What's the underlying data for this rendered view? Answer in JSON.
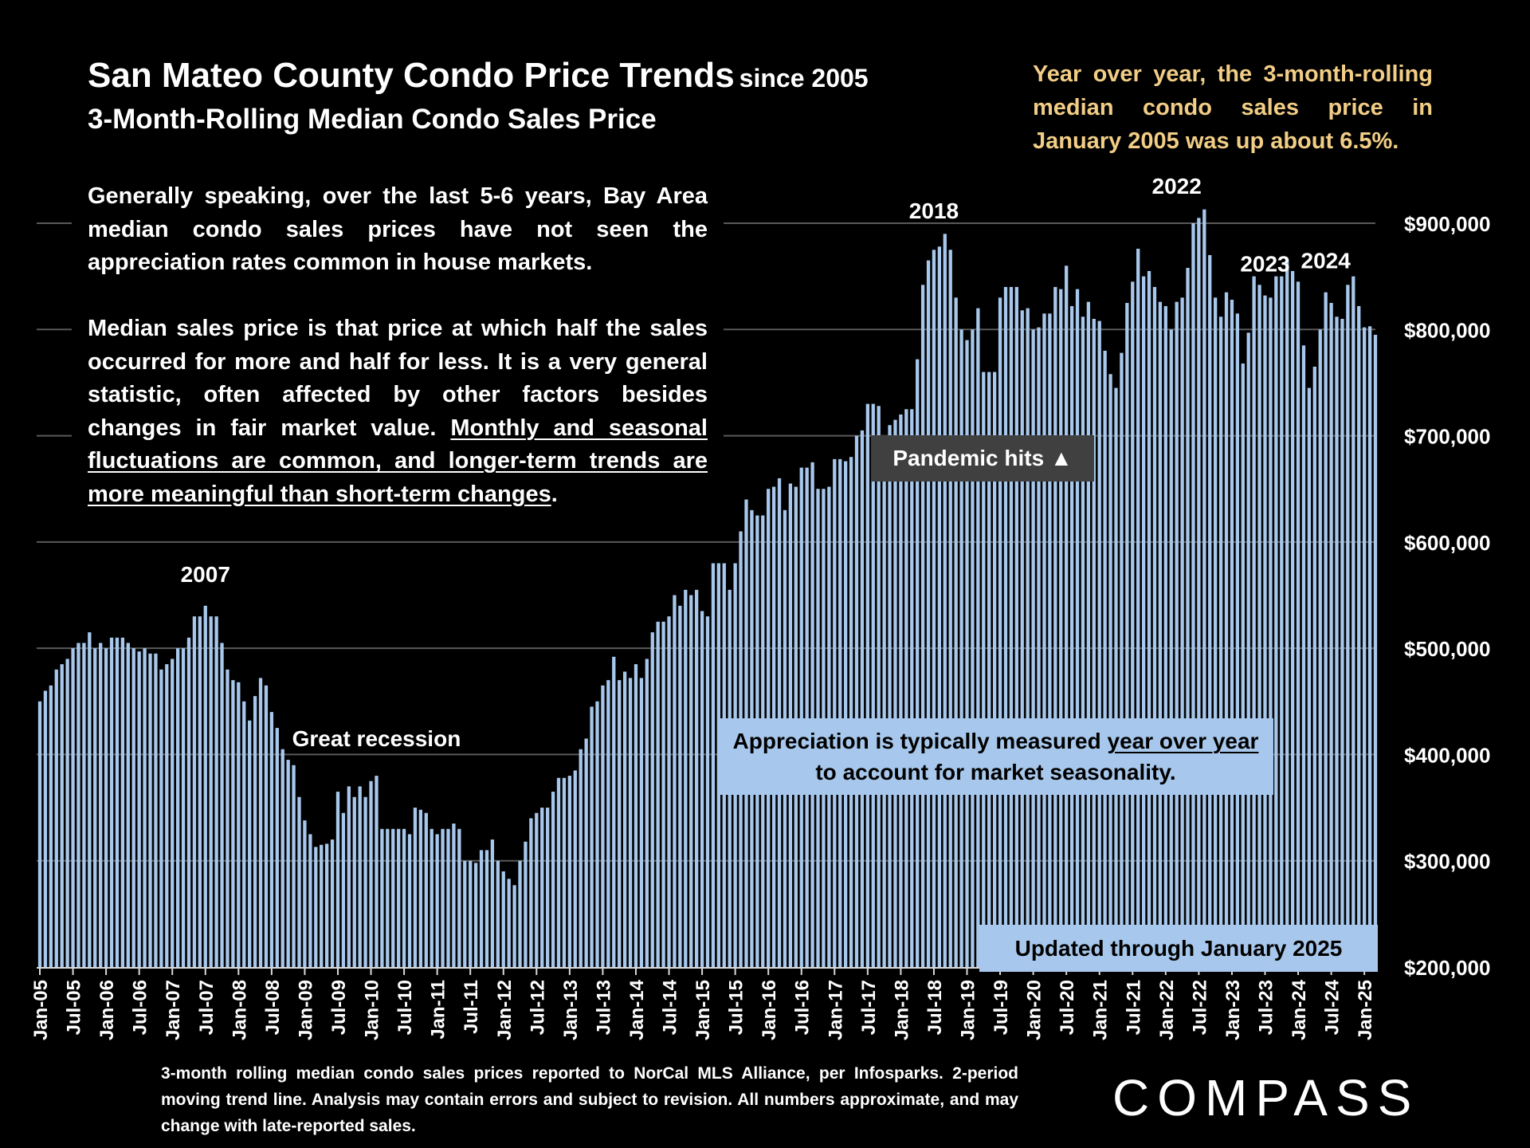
{
  "header": {
    "title": "San Mateo County Condo Price Trends",
    "title_since": "since 2005",
    "subtitle": "3-Month-Rolling Median Condo Sales Price"
  },
  "yoy_note": "Year over year, the 3-month-rolling median condo sales price in January 2005 was up about 6.5%.",
  "paragraph1": "Generally speaking, over the last 5-6 years, Bay Area median condo sales prices have not seen the appreciation rates common in house markets.",
  "paragraph2": {
    "text": "Median sales price is that price at which half the sales occurred for more and half for less. It is a very general statistic, often affected by other factors besides changes in fair market value.",
    "underlined": "Monthly and seasonal fluctuations are common, and longer-term trends are more meaningful than short-term changes",
    "end": "."
  },
  "boxes": {
    "pandemic": "Pandemic hits ▲",
    "appreciation_pre": "Appreciation is typically measured",
    "appreciation_ul": "year over year",
    "appreciation_post": "to account for market seasonality.",
    "updated": "Updated through January 2025"
  },
  "footnote": "3-month rolling median condo sales prices reported to NorCal MLS Alliance, per Infosparks. 2-period moving trend line. Analysis may contain errors and subject to revision. All numbers approximate, and may change with late-reported sales.",
  "logo": "COMPASS",
  "colors": {
    "bar": "#a7c8ec",
    "highlight_text": "#f1cd86",
    "gridline": "#595959",
    "background": "#000000"
  },
  "chart_data": {
    "type": "bar",
    "title": "San Mateo County Condo Price Trends since 2005",
    "subtitle": "3-Month-Rolling Median Condo Sales Price",
    "ylim": [
      200000,
      900000
    ],
    "y_ticks": [
      "$200,000",
      "$300,000",
      "$400,000",
      "$500,000",
      "$600,000",
      "$700,000",
      "$800,000",
      "$900,000"
    ],
    "y_tick_values": [
      200000,
      300000,
      400000,
      500000,
      600000,
      700000,
      800000,
      900000
    ],
    "grid": true,
    "x_tick_labels": [
      "Jan-05",
      "Jul-05",
      "Jan-06",
      "Jul-06",
      "Jan-07",
      "Jul-07",
      "Jan-08",
      "Jul-08",
      "Jan-09",
      "Jul-09",
      "Jan-10",
      "Jul-10",
      "Jan-11",
      "Jul-11",
      "Jan-12",
      "Jul-12",
      "Jan-13",
      "Jul-13",
      "Jan-14",
      "Jul-14",
      "Jan-15",
      "Jul-15",
      "Jan-16",
      "Jul-16",
      "Jan-17",
      "Jul-17",
      "Jan-18",
      "Jul-18",
      "Jan-19",
      "Jul-19",
      "Jan-20",
      "Jul-20",
      "Jan-21",
      "Jul-21",
      "Jan-22",
      "Jul-22",
      "Jan-23",
      "Jul-23",
      "Jan-24",
      "Jul-24",
      "Jan-25"
    ],
    "annotations": [
      {
        "text": "2007",
        "month": "Jul-07"
      },
      {
        "text": "Great recession",
        "month": "Feb-10"
      },
      {
        "text": "2018",
        "month": "Jul-18"
      },
      {
        "text": "2022",
        "month": "Mar-22"
      },
      {
        "text": "2023",
        "month": "Jul-23"
      },
      {
        "text": "2024",
        "month": "Jun-24"
      }
    ],
    "values": [
      450000,
      460000,
      465000,
      480000,
      485000,
      490000,
      500000,
      505000,
      505000,
      515000,
      500000,
      505000,
      500000,
      510000,
      510000,
      510000,
      505000,
      500000,
      497000,
      500000,
      495000,
      495000,
      480000,
      485000,
      490000,
      500000,
      500000,
      510000,
      530000,
      530000,
      540000,
      530000,
      530000,
      505000,
      480000,
      470000,
      468000,
      450000,
      432000,
      455000,
      472000,
      465000,
      440000,
      425000,
      405000,
      395000,
      390000,
      360000,
      338000,
      325000,
      313000,
      315000,
      316000,
      320000,
      365000,
      345000,
      370000,
      360000,
      370000,
      360000,
      375000,
      380000,
      330000,
      330000,
      330000,
      330000,
      330000,
      325000,
      350000,
      348000,
      345000,
      330000,
      325000,
      330000,
      330000,
      335000,
      330000,
      300000,
      300000,
      298000,
      310000,
      310000,
      320000,
      300000,
      290000,
      283000,
      277000,
      300000,
      318000,
      340000,
      345000,
      350000,
      350000,
      365000,
      378000,
      378000,
      380000,
      385000,
      405000,
      415000,
      445000,
      450000,
      465000,
      470000,
      492000,
      470000,
      478000,
      472000,
      485000,
      472000,
      490000,
      515000,
      525000,
      525000,
      530000,
      550000,
      540000,
      555000,
      550000,
      555000,
      535000,
      530000,
      580000,
      580000,
      580000,
      555000,
      580000,
      610000,
      640000,
      630000,
      625000,
      625000,
      650000,
      652000,
      660000,
      630000,
      655000,
      652000,
      670000,
      670000,
      675000,
      650000,
      650000,
      652000,
      678000,
      678000,
      676000,
      680000,
      700000,
      705000,
      730000,
      730000,
      728000,
      700000,
      710000,
      715000,
      720000,
      725000,
      725000,
      772000,
      842000,
      865000,
      875000,
      878000,
      890000,
      875000,
      830000,
      800000,
      790000,
      800000,
      820000,
      760000,
      760000,
      760000,
      830000,
      840000,
      840000,
      840000,
      818000,
      820000,
      800000,
      802000,
      815000,
      815000,
      840000,
      838000,
      860000,
      822000,
      838000,
      812000,
      826000,
      810000,
      808000,
      780000,
      758000,
      745000,
      778000,
      825000,
      845000,
      876000,
      850000,
      855000,
      840000,
      826000,
      822000,
      800000,
      826000,
      830000,
      858000,
      900000,
      905000,
      913000,
      870000,
      830000,
      812000,
      835000,
      828000,
      815000,
      768000,
      797000,
      850000,
      842000,
      832000,
      830000,
      850000,
      850000,
      866000,
      855000,
      845000,
      785000,
      745000,
      765000,
      800000,
      835000,
      825000,
      812000,
      810000,
      842000,
      850000,
      822000,
      802000,
      803000,
      795000
    ]
  }
}
